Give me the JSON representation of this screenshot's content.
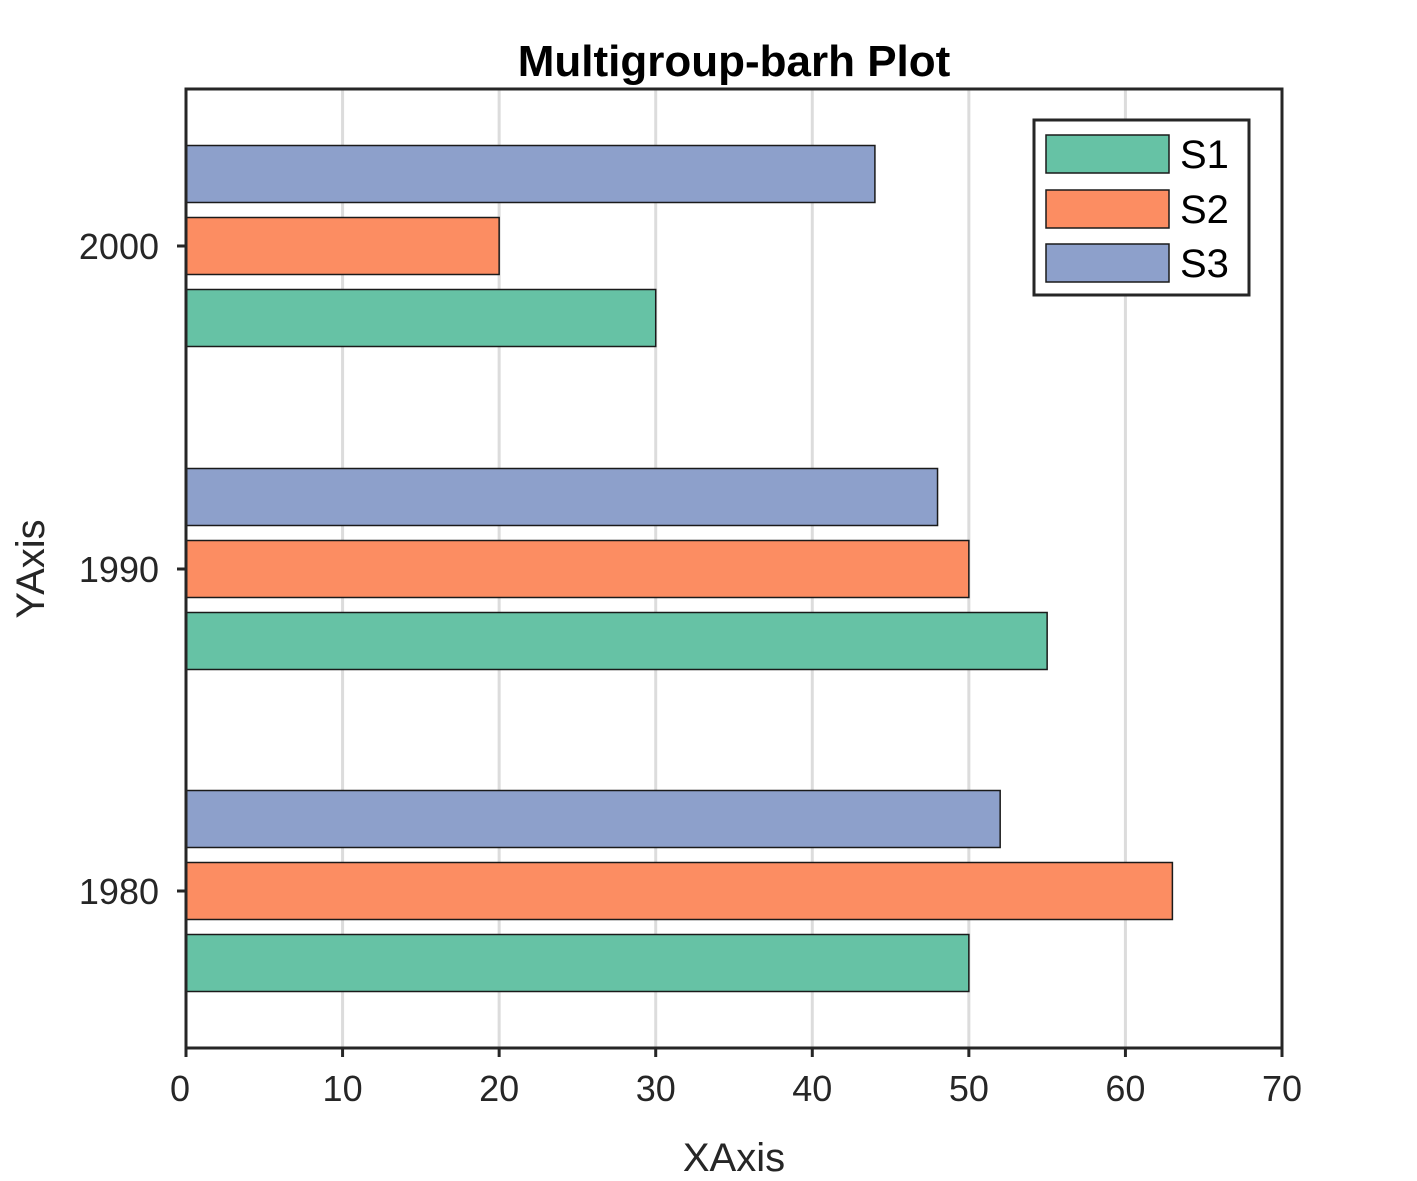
{
  "chart_data": {
    "type": "bar",
    "orientation": "horizontal",
    "title": "Multigroup-barh Plot",
    "xlabel": "XAxis",
    "ylabel": "YAxis",
    "categories": [
      "1980",
      "1990",
      "2000"
    ],
    "series": [
      {
        "name": "S1",
        "color": "#66c2a5",
        "values": [
          50,
          55,
          30
        ]
      },
      {
        "name": "S2",
        "color": "#fc8d62",
        "values": [
          63,
          50,
          20
        ]
      },
      {
        "name": "S3",
        "color": "#8da0cb",
        "values": [
          52,
          48,
          44
        ]
      }
    ],
    "xlim": [
      0,
      70
    ],
    "xticks": [
      0,
      10,
      20,
      30,
      40,
      50,
      60,
      70
    ],
    "xtick_labels": [
      "0",
      "10",
      "20",
      "30",
      "40",
      "50",
      "60",
      "70"
    ],
    "ytick_labels": [
      "1980",
      "1990",
      "2000"
    ],
    "grid": "vertical",
    "legend": "top-right"
  }
}
